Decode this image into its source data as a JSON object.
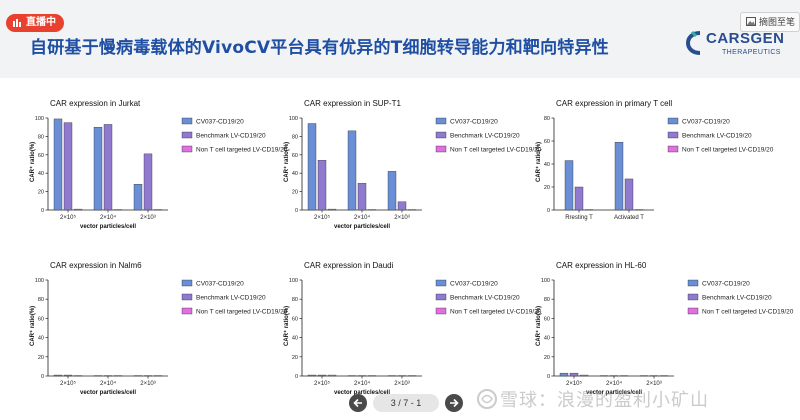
{
  "header": {
    "live_badge": "直播中",
    "slide_title": "自研基于慢病毒载体的VivoCV平台具有优异的T细胞转导能力和靶向特异性",
    "logo_text": "CARSGEN",
    "logo_sub": "THERAPEUTICS",
    "capture_button": "摘图至笔"
  },
  "pager": {
    "indicator": "3 / 7 - 1"
  },
  "watermark": {
    "text": "雪球：浪漫的盈利小矿山"
  },
  "colors": {
    "series1": "#6a8fd6",
    "series2": "#8f7ad0",
    "series3": "#e06fe0",
    "title_blue": "#1f4fa3",
    "live_red": "#e8412f"
  },
  "chart_data": [
    {
      "type": "bar",
      "title": "CAR expression in Jurkat",
      "ylabel": "CAR⁺ ratio(%)",
      "xlabel": "vector particles/cell",
      "ylim": [
        0,
        100
      ],
      "yticks": [
        "0",
        "20",
        "40",
        "60",
        "80",
        "100"
      ],
      "categories": [
        "2×10⁵",
        "2×10⁴",
        "2×10³"
      ],
      "legend": [
        "CV037-CD19/20",
        "Benchmark LV-CD19/20",
        "Non T cell targeted LV-CD19/20"
      ],
      "series": [
        {
          "name": "CV037-CD19/20",
          "values": [
            99,
            90,
            28
          ]
        },
        {
          "name": "Benchmark LV-CD19/20",
          "values": [
            95,
            93,
            61
          ]
        },
        {
          "name": "Non T cell targeted LV-CD19/20",
          "values": [
            1,
            0,
            0
          ]
        }
      ]
    },
    {
      "type": "bar",
      "title": "CAR expression in SUP-T1",
      "ylabel": "CAR⁺ ratio(%)",
      "xlabel": "vector particles/cell",
      "ylim": [
        0,
        100
      ],
      "yticks": [
        "0",
        "20",
        "40",
        "60",
        "80",
        "100"
      ],
      "categories": [
        "2×10⁵",
        "2×10⁴",
        "2×10³"
      ],
      "legend": [
        "CV037-CD19/20",
        "Benchmark LV-CD19/20",
        "Non T cell targeted LV-CD19/20"
      ],
      "series": [
        {
          "name": "CV037-CD19/20",
          "values": [
            94,
            86,
            42
          ]
        },
        {
          "name": "Benchmark LV-CD19/20",
          "values": [
            54,
            29,
            9
          ]
        },
        {
          "name": "Non T cell targeted LV-CD19/20",
          "values": [
            1,
            0,
            0
          ]
        }
      ]
    },
    {
      "type": "bar",
      "title": "CAR expression in primary T cell",
      "ylabel": "CAR⁺ ratio(%)",
      "xlabel": "",
      "ylim": [
        0,
        80
      ],
      "yticks": [
        "0",
        "20",
        "40",
        "60",
        "80"
      ],
      "categories": [
        "Rresting T",
        "Activated T"
      ],
      "legend": [
        "CV037-CD19/20",
        "Benchmark LV-CD19/20",
        "Non T cell targeted LV-CD19/20"
      ],
      "series": [
        {
          "name": "CV037-CD19/20",
          "values": [
            43,
            59
          ]
        },
        {
          "name": "Benchmark LV-CD19/20",
          "values": [
            20,
            27
          ]
        },
        {
          "name": "Non T cell targeted LV-CD19/20",
          "values": [
            0,
            0
          ]
        }
      ]
    },
    {
      "type": "bar",
      "title": "CAR expression in Nalm6",
      "ylabel": "CAR⁺ ratio(%)",
      "xlabel": "vector particles/cell",
      "ylim": [
        0,
        100
      ],
      "yticks": [
        "0",
        "20",
        "40",
        "60",
        "80",
        "100"
      ],
      "categories": [
        "2×10⁵",
        "2×10⁴",
        "2×10³"
      ],
      "legend": [
        "CV037-CD19/20",
        "Benchmark LV-CD19/20",
        "Non T cell targeted LV-CD19/20"
      ],
      "series": [
        {
          "name": "CV037-CD19/20",
          "values": [
            1,
            0,
            0
          ]
        },
        {
          "name": "Benchmark LV-CD19/20",
          "values": [
            1,
            0,
            0
          ]
        },
        {
          "name": "Non T cell targeted LV-CD19/20",
          "values": [
            0,
            0,
            0
          ]
        }
      ]
    },
    {
      "type": "bar",
      "title": "CAR expression in Daudi",
      "ylabel": "CAR⁺ ratio(%)",
      "xlabel": "vector particles/cell",
      "ylim": [
        0,
        100
      ],
      "yticks": [
        "0",
        "20",
        "40",
        "60",
        "80",
        "100"
      ],
      "categories": [
        "2×10⁵",
        "2×10⁴",
        "2×10³"
      ],
      "legend": [
        "CV037-CD19/20",
        "Benchmark LV-CD19/20",
        "Non T cell targeted LV-CD19/20"
      ],
      "series": [
        {
          "name": "CV037-CD19/20",
          "values": [
            1,
            0,
            0
          ]
        },
        {
          "name": "Benchmark LV-CD19/20",
          "values": [
            1,
            0,
            0
          ]
        },
        {
          "name": "Non T cell targeted LV-CD19/20",
          "values": [
            1,
            0,
            0
          ]
        }
      ]
    },
    {
      "type": "bar",
      "title": "CAR expression in HL-60",
      "ylabel": "CAR⁺ ratio(%)",
      "xlabel": "vector particles/cell",
      "ylim": [
        0,
        100
      ],
      "yticks": [
        "0",
        "20",
        "40",
        "60",
        "80",
        "100"
      ],
      "categories": [
        "2×10⁵",
        "2×10⁴",
        "2×10³"
      ],
      "legend": [
        "CV037-CD19/20",
        "Benchmark LV-CD19/20",
        "Non T cell targeted LV-CD19/20"
      ],
      "series": [
        {
          "name": "CV037-CD19/20",
          "values": [
            3,
            0,
            0
          ]
        },
        {
          "name": "Benchmark LV-CD19/20",
          "values": [
            3,
            0,
            0
          ]
        },
        {
          "name": "Non T cell targeted LV-CD19/20",
          "values": [
            1,
            0,
            0
          ]
        }
      ]
    }
  ]
}
